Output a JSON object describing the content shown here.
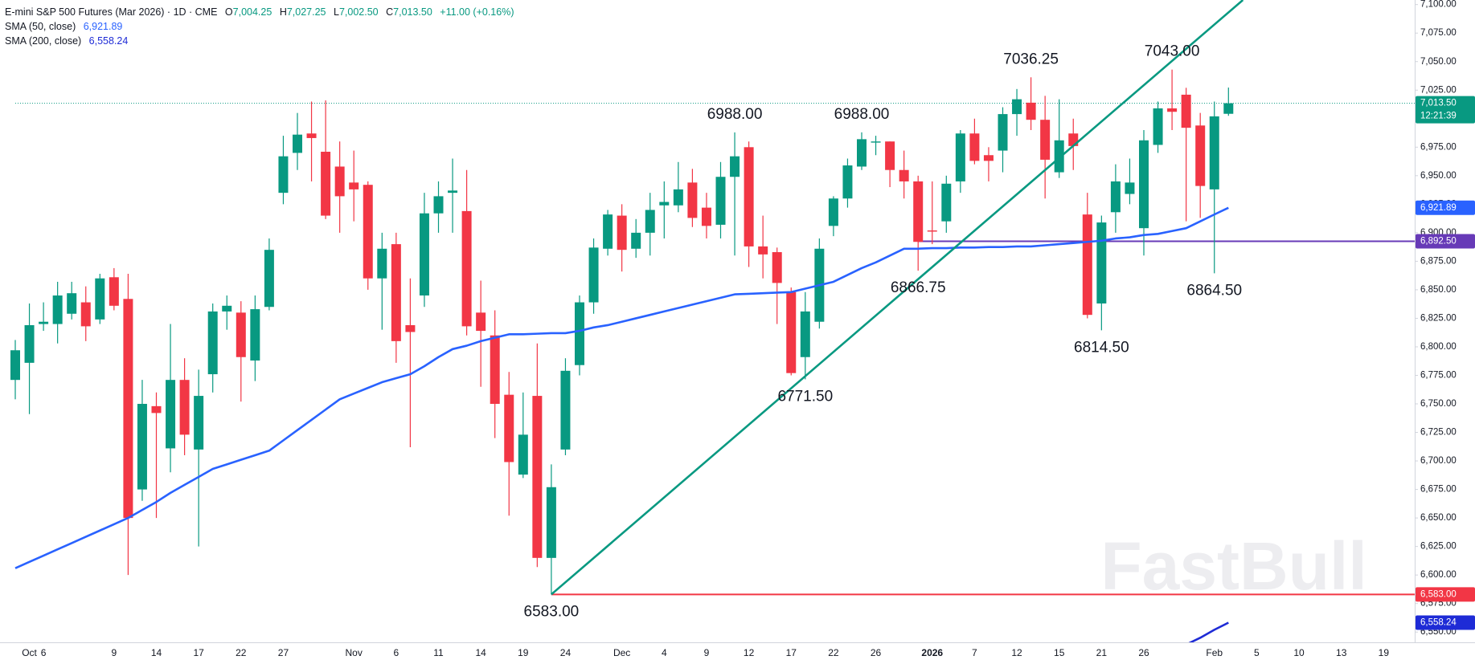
{
  "header": {
    "title": "E-mini S&P 500 Futures (Mar 2026) · 1D · CME",
    "ohlc": [
      {
        "key": "O",
        "value": "7,004.25"
      },
      {
        "key": "H",
        "value": "7,027.25"
      },
      {
        "key": "L",
        "value": "7,002.50"
      },
      {
        "key": "C",
        "value": "7,013.50"
      }
    ],
    "change": "+11.00 (+0.16%)",
    "indicators": [
      {
        "name": "SMA (50, close)",
        "value": "6,921.89",
        "color": "#2962ff"
      },
      {
        "name": "SMA (200, close)",
        "value": "6,558.24",
        "color": "#1e2bd6"
      }
    ]
  },
  "chart_data": {
    "type": "candlestick",
    "watermark": "FastBull",
    "up_color": "#089981",
    "down_color": "#f23645",
    "ylim": [
      6541,
      7104
    ],
    "yticks": [
      {
        "value": 6550,
        "label": "6,550.00"
      },
      {
        "value": 6575,
        "label": "6,575.00"
      },
      {
        "value": 6600,
        "label": "6,600.00"
      },
      {
        "value": 6625,
        "label": "6,625.00"
      },
      {
        "value": 6650,
        "label": "6,650.00"
      },
      {
        "value": 6675,
        "label": "6,675.00"
      },
      {
        "value": 6700,
        "label": "6,700.00"
      },
      {
        "value": 6725,
        "label": "6,725.00"
      },
      {
        "value": 6750,
        "label": "6,750.00"
      },
      {
        "value": 6775,
        "label": "6,775.00"
      },
      {
        "value": 6800,
        "label": "6,800.00"
      },
      {
        "value": 6825,
        "label": "6,825.00"
      },
      {
        "value": 6850,
        "label": "6,850.00"
      },
      {
        "value": 6875,
        "label": "6,875.00"
      },
      {
        "value": 6900,
        "label": "6,900.00"
      },
      {
        "value": 6925,
        "label": "6,925.00"
      },
      {
        "value": 6950,
        "label": "6,950.00"
      },
      {
        "value": 6975,
        "label": "6,975.00"
      },
      {
        "value": 7000,
        "label": "7,000.00"
      },
      {
        "value": 7025,
        "label": "7,025.00"
      },
      {
        "value": 7050,
        "label": "7,050.00"
      },
      {
        "value": 7075,
        "label": "7,075.00"
      },
      {
        "value": 7100,
        "label": "7,100.00"
      }
    ],
    "categories": [
      null,
      "Oct",
      "6",
      null,
      null,
      null,
      null,
      "9",
      null,
      null,
      "14",
      null,
      null,
      "17",
      null,
      null,
      "22",
      null,
      null,
      "27",
      null,
      null,
      null,
      null,
      "Nov",
      null,
      null,
      "6",
      null,
      null,
      "11",
      null,
      null,
      "14",
      null,
      null,
      "19",
      null,
      null,
      "24",
      null,
      null,
      null,
      "Dec",
      null,
      null,
      "4",
      null,
      null,
      "9",
      null,
      null,
      "12",
      null,
      null,
      "17",
      null,
      null,
      "22",
      null,
      null,
      "26",
      null,
      null,
      null,
      "2026",
      null,
      null,
      "7",
      null,
      null,
      "12",
      null,
      null,
      "15",
      null,
      null,
      "21",
      null,
      null,
      "26",
      null,
      null,
      null,
      null,
      "Feb",
      null,
      null,
      "5",
      null,
      null,
      "10",
      null,
      null,
      "13",
      null,
      null,
      "19",
      null,
      null
    ],
    "open": [
      6771,
      6786,
      6820,
      6820,
      6829,
      6839,
      6824,
      6861,
      6842,
      6675,
      6748,
      6711,
      6771,
      6710,
      6776,
      6831,
      6830,
      6788,
      6835,
      6935,
      6970,
      6987,
      6971,
      6958,
      6944,
      6942,
      6860,
      6890,
      6819,
      6845,
      6917,
      6935,
      6919,
      6830,
      6810,
      6758,
      6688,
      6757,
      6615,
      6710,
      6784,
      6839,
      6886,
      6915,
      6886,
      6900,
      6924,
      6924,
      6944,
      6922,
      6907,
      6949,
      6975,
      6888,
      6883,
      6848,
      6791,
      6822,
      6906,
      6930,
      6958,
      6979,
      6980,
      6955,
      6945,
      6902,
      6910,
      6945,
      6987,
      6968,
      6972,
      7004,
      7014,
      6999,
      6953,
      6987,
      6916,
      6838,
      6918,
      6934,
      6904,
      6977,
      7009,
      7021,
      6994,
      6938,
      7004.25,
      null,
      null,
      null,
      null,
      null,
      null,
      null,
      null,
      null,
      null,
      null,
      null,
      null
    ],
    "high": [
      6806,
      6838,
      6839,
      6857,
      6857,
      6853,
      6864,
      6869,
      6864,
      6771,
      6760,
      6820,
      6790,
      6780,
      6838,
      6845,
      6840,
      6845,
      6895,
      6985,
      7005,
      7015,
      7016,
      6980,
      6972,
      6945,
      6900,
      6900,
      6860,
      6935,
      6945,
      6965,
      6955,
      6858,
      6832,
      6778,
      6760,
      6803,
      6697,
      6790,
      6845,
      6895,
      6920,
      6925,
      6912,
      6935,
      6945,
      6962,
      6956,
      6935,
      6962,
      6988,
      6980,
      6915,
      6887,
      6852,
      6848,
      6895,
      6932,
      6965,
      6988,
      6985,
      6980,
      6972,
      6950,
      6945,
      6950,
      6990,
      7000,
      6975,
      7010,
      7026,
      7036.25,
      7020,
      7017,
      7000,
      6935,
      6915,
      6960,
      6965,
      6990,
      7015,
      7043,
      7027,
      7005,
      7015,
      7027.25,
      null,
      null,
      null,
      null,
      null,
      null,
      null,
      null,
      null,
      null,
      null,
      null,
      null
    ],
    "low": [
      6754,
      6741,
      6814,
      6803,
      6824,
      6805,
      6820,
      6832,
      6600,
      6665,
      6650,
      6690,
      6705,
      6625,
      6760,
      6815,
      6752,
      6770,
      6832,
      6925,
      6955,
      6945,
      6912,
      6900,
      6910,
      6850,
      6815,
      6786,
      6712,
      6835,
      6900,
      6900,
      6810,
      6765,
      6720,
      6652,
      6685,
      6607,
      6583,
      6705,
      6775,
      6829,
      6880,
      6866,
      6878,
      6880,
      6895,
      6918,
      6905,
      6895,
      6895,
      6880,
      6870,
      6860,
      6820,
      6775,
      6771.5,
      6816,
      6897,
      6922,
      6955,
      6968,
      6940,
      6930,
      6866.75,
      6890,
      6900,
      6935,
      6960,
      6945,
      6953,
      6985,
      6990,
      6930,
      6948,
      6955,
      6825,
      6814.5,
      6900,
      6925,
      6880,
      6970,
      6990,
      6910,
      6913,
      6864.5,
      7002.5,
      null,
      null,
      null,
      null,
      null,
      null,
      null,
      null,
      null,
      null,
      null,
      null,
      null
    ],
    "close": [
      6797,
      6819,
      6822,
      6845,
      6847,
      6818,
      6860,
      6836,
      6650,
      6750,
      6742,
      6771,
      6723,
      6757,
      6831,
      6836,
      6791,
      6833,
      6885,
      6967,
      6986,
      6983,
      6915,
      6932,
      6938,
      6860,
      6886,
      6805,
      6813,
      6917,
      6932,
      6937,
      6818,
      6814,
      6750,
      6699,
      6723,
      6615,
      6677,
      6779,
      6839,
      6887,
      6916,
      6885,
      6900,
      6920,
      6927,
      6938,
      6913,
      6906,
      6949,
      6967,
      6888,
      6881,
      6856,
      6777,
      6831,
      6886,
      6930,
      6959,
      6982,
      6980,
      6955,
      6945,
      6892,
      6901,
      6943,
      6987,
      6963,
      6963,
      7004,
      7017,
      6999,
      6964,
      6981,
      6976,
      6828,
      6909,
      6945,
      6944,
      6981,
      7009,
      7006,
      6992,
      6941,
      7002,
      7013.5,
      null,
      null,
      null,
      null,
      null,
      null,
      null,
      null,
      null,
      null,
      null,
      null,
      null
    ],
    "lines": [
      {
        "color": "#2962ff",
        "values": [
          6606,
          6611.5,
          6617,
          6622.5,
          6628,
          6633.5,
          6639,
          6644.5,
          6650,
          6657,
          6664,
          6672,
          6679,
          6686,
          6693,
          6697,
          6701,
          6705,
          6709,
          6718,
          6727,
          6736,
          6745,
          6754,
          6759,
          6764,
          6769,
          6772.5,
          6776,
          6783,
          6791,
          6798,
          6801,
          6805,
          6808,
          6811,
          6811,
          6811.5,
          6812,
          6812,
          6814,
          6817,
          6819,
          6822,
          6825,
          6828,
          6831,
          6834,
          6837,
          6840,
          6843,
          6846,
          6846.5,
          6847,
          6847.5,
          6848,
          6851,
          6854,
          6857,
          6863,
          6869,
          6874,
          6880,
          6886,
          6886,
          6886.5,
          6886.5,
          6887,
          6887,
          6887.5,
          6887.5,
          6888,
          6888,
          6889,
          6890,
          6891,
          6892,
          6893,
          6895,
          6896,
          6898,
          6899,
          6901.5,
          6904,
          6910,
          6916,
          6921.89,
          null,
          null,
          null,
          null,
          null,
          null,
          null,
          null,
          null,
          null,
          null,
          null,
          null
        ]
      },
      {
        "color": "#1e2bd6",
        "values": [
          null,
          null,
          null,
          null,
          null,
          null,
          null,
          null,
          null,
          null,
          null,
          null,
          null,
          null,
          null,
          null,
          null,
          null,
          null,
          null,
          null,
          null,
          null,
          null,
          null,
          null,
          null,
          null,
          null,
          null,
          null,
          null,
          null,
          null,
          null,
          null,
          null,
          null,
          null,
          null,
          null,
          null,
          null,
          null,
          null,
          null,
          null,
          null,
          null,
          null,
          null,
          null,
          null,
          null,
          null,
          null,
          null,
          null,
          null,
          null,
          null,
          null,
          null,
          null,
          null,
          null,
          null,
          null,
          null,
          null,
          null,
          null,
          null,
          null,
          null,
          null,
          null,
          null,
          null,
          null,
          null,
          null,
          null,
          6539,
          6545,
          6552,
          6558.24,
          null,
          null,
          null,
          null,
          null,
          null,
          null,
          null,
          null,
          null,
          null,
          null,
          null
        ]
      }
    ],
    "trendlines": [
      {
        "color": "#089981",
        "start": {
          "index": 38,
          "value": 6583
        },
        "end": {
          "index": 82,
          "value": 7050.6
        }
      }
    ],
    "hlines": [
      {
        "value": 6892.5,
        "from": 64,
        "color": "#673ab7",
        "style": "solid"
      },
      {
        "value": 6583,
        "from": 38,
        "color": "#f23645",
        "style": "solid"
      },
      {
        "value": 7013.5,
        "from": 0,
        "color": "#089981",
        "style": "dotted"
      }
    ],
    "annotations": [
      {
        "label": "7036.25",
        "value": 7036.25,
        "index": 72,
        "side": "above"
      },
      {
        "label": "7043.00",
        "value": 7043,
        "index": 82,
        "side": "above"
      },
      {
        "label": "6988.00",
        "value": 6988,
        "index": 51,
        "side": "above"
      },
      {
        "label": "6988.00",
        "value": 6988,
        "index": 60,
        "side": "above"
      },
      {
        "label": "6866.75",
        "value": 6866.75,
        "index": 64,
        "side": "below"
      },
      {
        "label": "6864.50",
        "value": 6864.5,
        "index": 85,
        "side": "below"
      },
      {
        "label": "6814.50",
        "value": 6814.5,
        "index": 77,
        "side": "below"
      },
      {
        "label": "6771.50",
        "value": 6771.5,
        "index": 56,
        "side": "below"
      },
      {
        "label": "6583.00",
        "value": 6583,
        "index": 38,
        "side": "below"
      }
    ],
    "price_tags": [
      {
        "value": 7013.5,
        "label": "7,013.50",
        "color": "#089981",
        "countdown": "12:21:39"
      },
      {
        "value": 6921.89,
        "label": "6,921.89",
        "color": "#2962ff"
      },
      {
        "value": 6892.5,
        "label": "6,892.50",
        "color": "#673ab7"
      },
      {
        "value": 6583,
        "label": "6,583.00",
        "color": "#f23645"
      },
      {
        "value": 6558.24,
        "label": "6,558.24",
        "color": "#1e2bd6"
      }
    ]
  }
}
